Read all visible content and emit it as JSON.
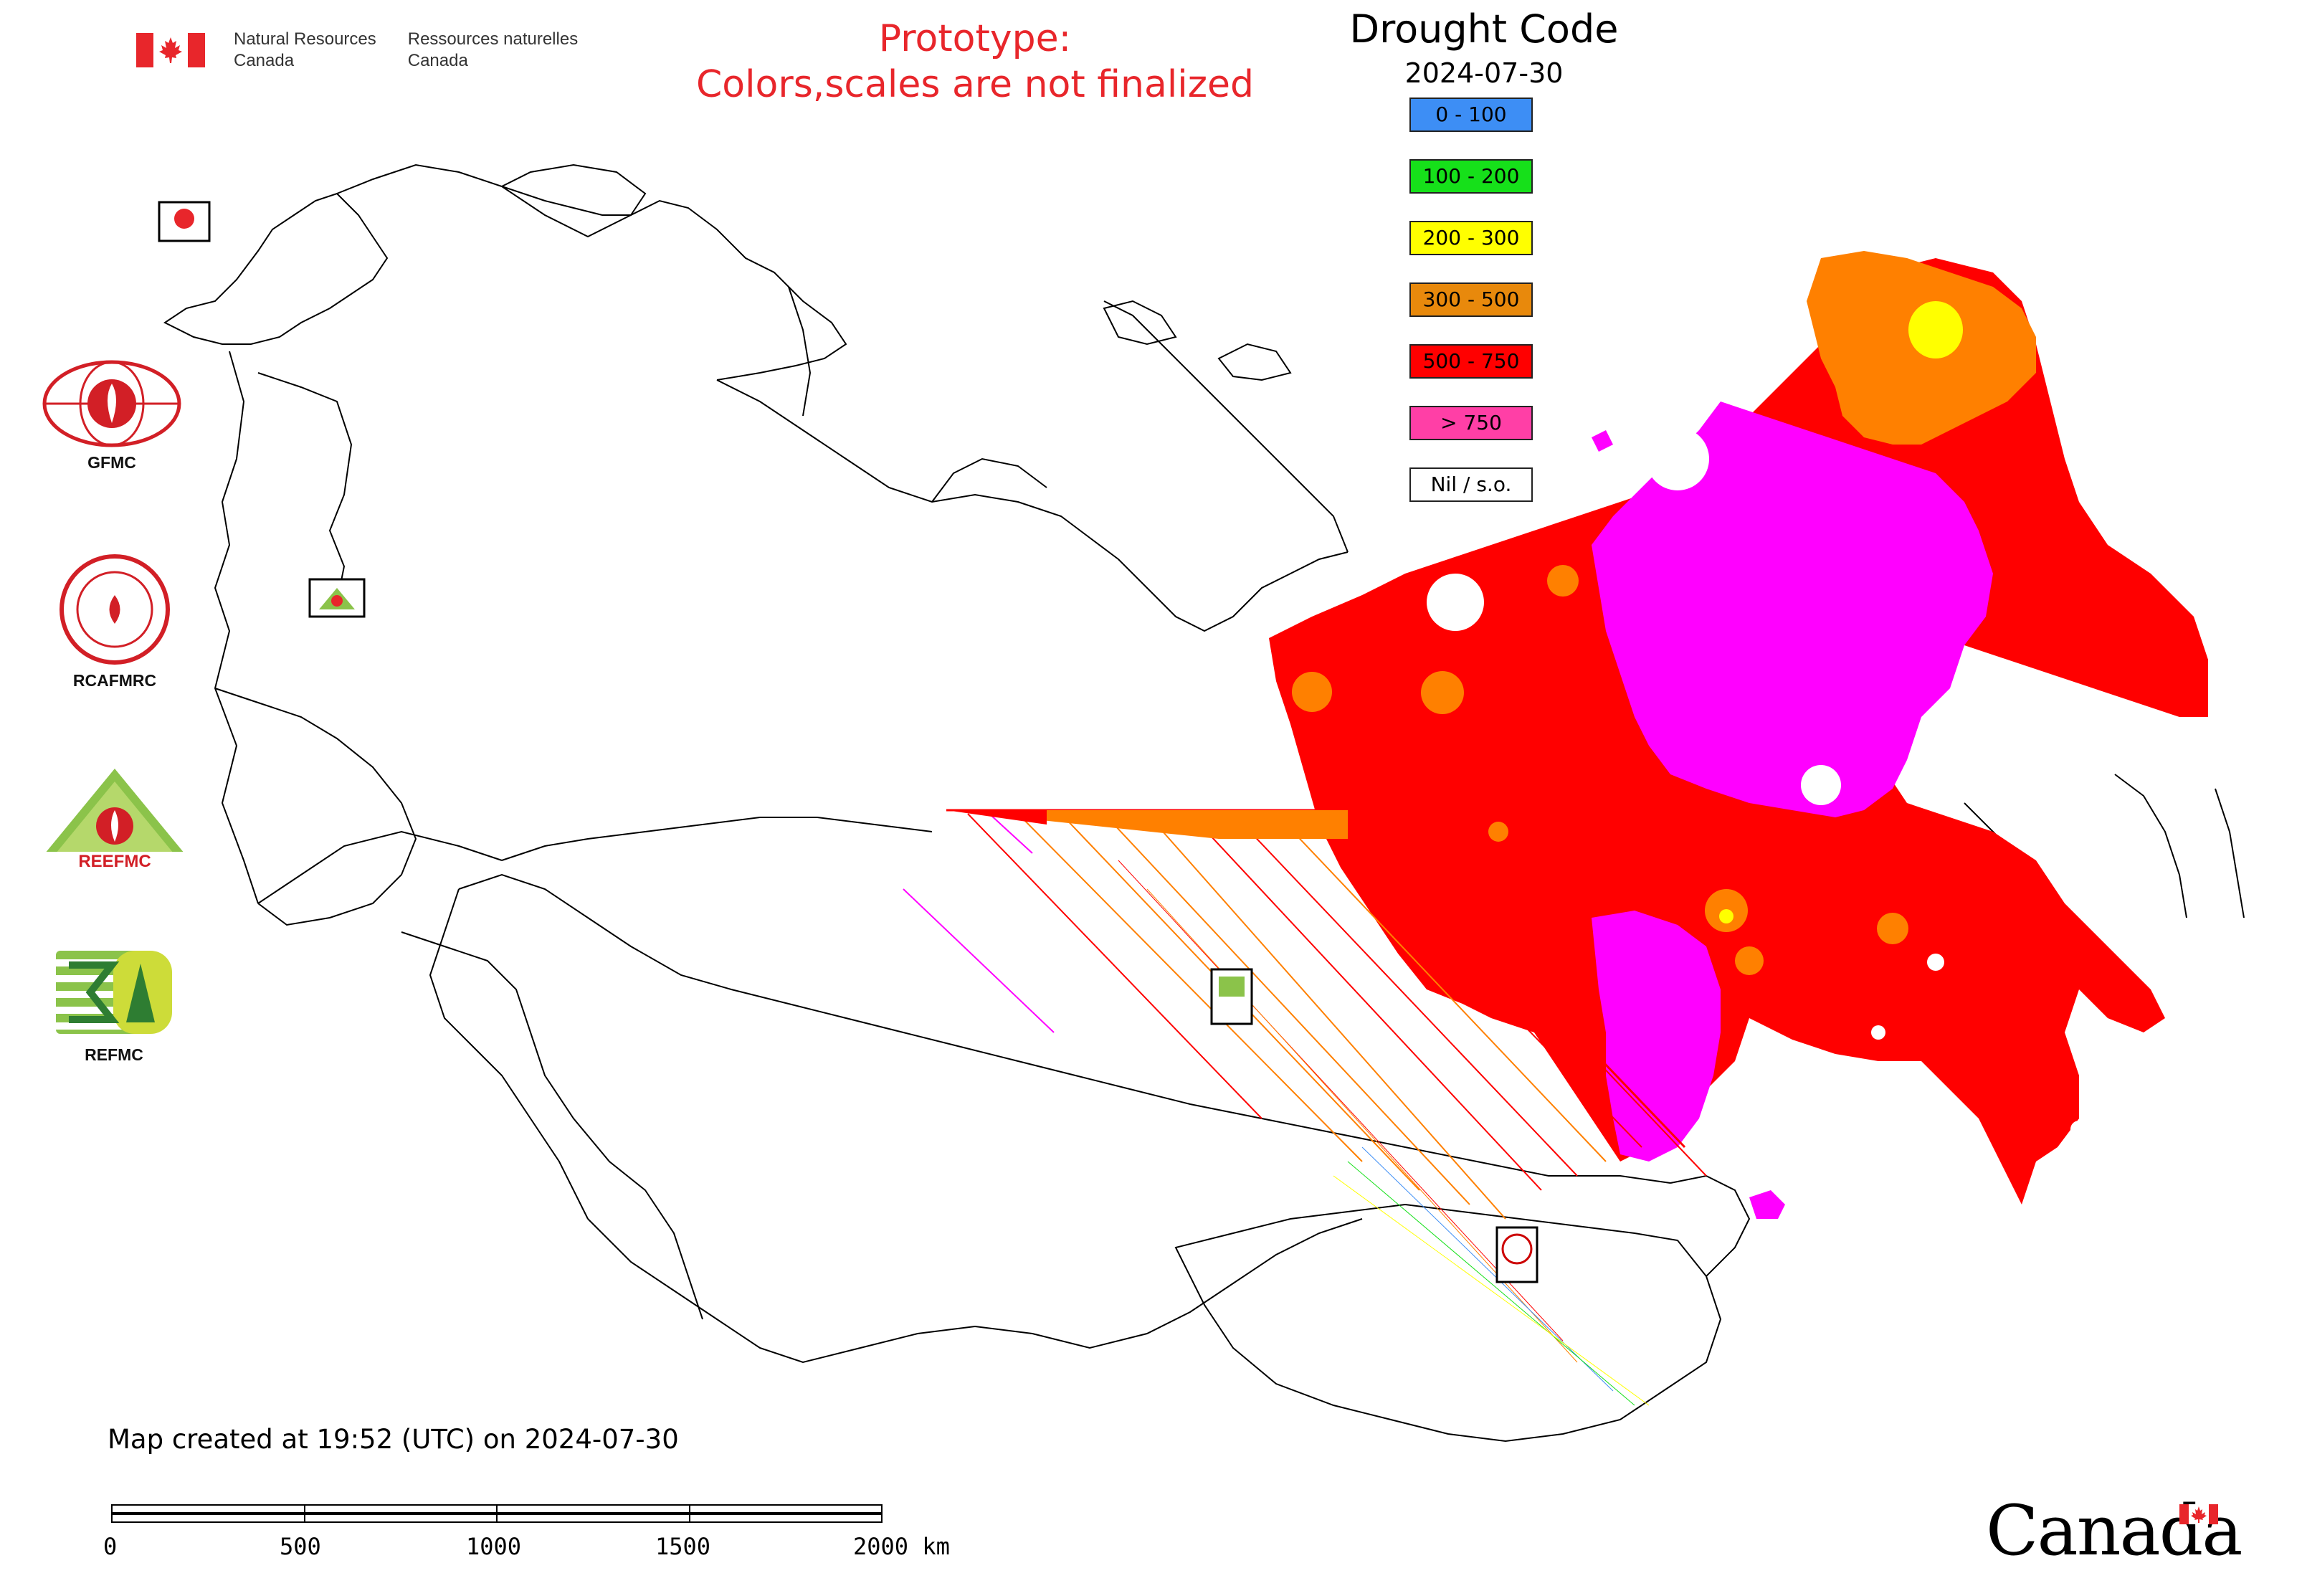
{
  "header": {
    "dept_en_line1": "Natural Resources",
    "dept_en_line2": "Canada",
    "dept_fr_line1": "Ressources naturelles",
    "dept_fr_line2": "Canada",
    "prototype_line1": "Prototype:",
    "prototype_line2": "Colors,scales are not finalized"
  },
  "legend": {
    "title": "Drought Code",
    "date": "2024-07-30",
    "items": [
      {
        "label": "0 - 100",
        "color": "#3d8ef5"
      },
      {
        "label": "100 - 200",
        "color": "#16e01a"
      },
      {
        "label": "200 - 300",
        "color": "#ffff00"
      },
      {
        "label": "300 - 500",
        "color": "#e8890c"
      },
      {
        "label": "500 - 750",
        "color": "#ff0000"
      },
      {
        "label": "> 750",
        "color": "#ff3fa6"
      },
      {
        "label": "Nil / s.o.",
        "color": "#ffffff"
      }
    ]
  },
  "side_logos": {
    "gfmc": "GFMC",
    "rcafmrc": "RCAFMRC",
    "reefmc": "REEFMC",
    "refmc": "REFMC"
  },
  "footer": {
    "created": "Map created at 19:52 (UTC) on 2024-07-30",
    "scale_labels": [
      "0",
      "500",
      "1000",
      "1500",
      "2000 km"
    ],
    "wordmark": "Canada"
  },
  "colors": {
    "accent_red": "#e8262b",
    "gt750_fill": "#ff00ff",
    "boundary": "#000000"
  }
}
